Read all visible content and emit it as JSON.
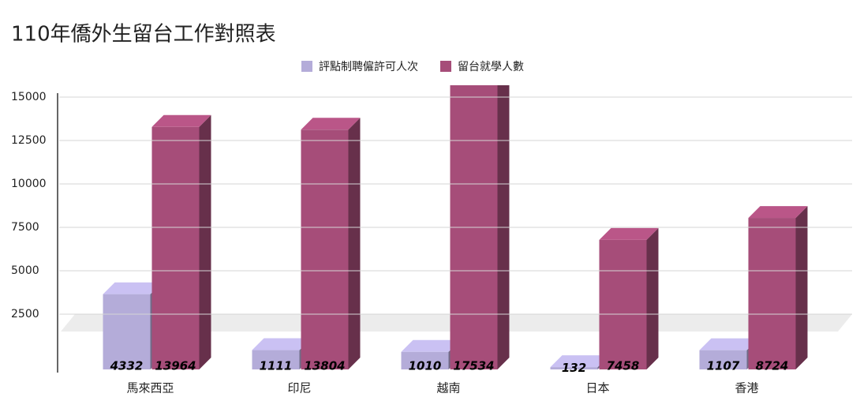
{
  "chart_data": {
    "type": "bar3d",
    "title": "110年僑外生留台工作對照表",
    "categories": [
      "馬來西亞",
      "印尼",
      "越南",
      "日本",
      "香港"
    ],
    "series": [
      {
        "name": "評點制聘僱許可人次",
        "color": "#b4acd9",
        "values": [
          4332,
          1111,
          1010,
          132,
          1107
        ]
      },
      {
        "name": "留台就學人數",
        "color": "#a64d79",
        "values": [
          13964,
          13804,
          17534,
          7458,
          8724
        ]
      }
    ],
    "ylim": [
      0,
      15000
    ],
    "yticks": [
      2500,
      5000,
      7500,
      10000,
      12500,
      15000
    ],
    "grid": true,
    "legend": "top"
  }
}
